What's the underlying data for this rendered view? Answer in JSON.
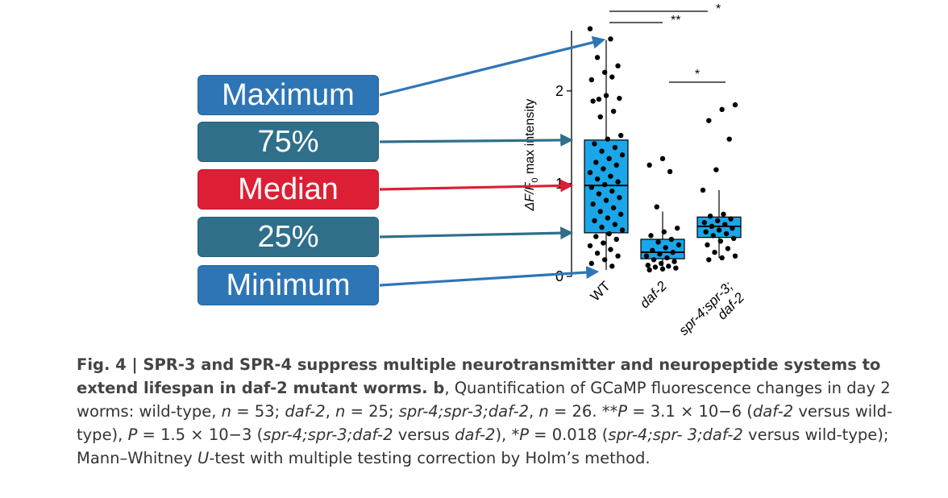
{
  "legend": [
    {
      "key": "max",
      "label": "Maximum",
      "color": "#2e75b6"
    },
    {
      "key": "q3",
      "label": "75%",
      "color": "#2f6f8a"
    },
    {
      "key": "median",
      "label": "Median",
      "color": "#dc1f35"
    },
    {
      "key": "q1",
      "label": "25%",
      "color": "#2f6f8a"
    },
    {
      "key": "min",
      "label": "Minimum",
      "color": "#2e75b6"
    }
  ],
  "chart_data": {
    "type": "box",
    "ylabel_parts": [
      "ΔF/F",
      "0",
      " max intensity"
    ],
    "yticks": [
      0,
      1,
      2
    ],
    "ylim": [
      0,
      2.65
    ],
    "box_color": "#1aa6e8",
    "categories": [
      "WT",
      "daf-2",
      "spr-4;spr-3;\ndaf-2"
    ],
    "category_lines": [
      [
        "WT"
      ],
      [
        "daf-2"
      ],
      [
        "spr-4;spr-3;",
        "daf-2"
      ]
    ],
    "category_italic": [
      false,
      true,
      true
    ],
    "boxes": [
      {
        "min": 0.07,
        "q1": 0.47,
        "median": 0.98,
        "q3": 1.47,
        "max": 2.55
      },
      {
        "min": 0.1,
        "q1": 0.19,
        "median": 0.26,
        "q3": 0.4,
        "max": 0.7
      },
      {
        "min": 0.2,
        "q1": 0.42,
        "median": 0.54,
        "q3": 0.64,
        "max": 0.93
      }
    ],
    "points": [
      [
        2.67,
        2.56,
        2.36,
        2.27,
        2.2,
        2.12,
        2.15,
        1.91,
        1.92,
        1.95,
        1.89,
        1.78,
        1.72,
        1.52,
        1.48,
        1.43,
        1.39,
        1.35,
        1.31,
        1.27,
        1.23,
        1.2,
        1.16,
        1.12,
        1.08,
        1.05,
        1.02,
        0.99,
        0.96,
        0.92,
        0.89,
        0.85,
        0.82,
        0.78,
        0.74,
        0.7,
        0.67,
        0.63,
        0.6,
        0.56,
        0.53,
        0.5,
        0.46,
        0.43,
        0.4,
        0.36,
        0.33,
        0.29,
        0.25,
        0.22,
        0.18,
        0.14,
        0.11
      ],
      [
        1.27,
        1.2,
        1.13,
        0.75,
        0.52,
        0.48,
        0.44,
        0.4,
        0.37,
        0.34,
        0.31,
        0.28,
        0.26,
        0.24,
        0.22,
        0.2,
        0.18,
        0.16,
        0.14,
        0.12,
        0.11,
        0.1,
        0.09,
        0.08,
        0.07
      ],
      [
        1.85,
        1.8,
        1.68,
        1.48,
        1.15,
        0.93,
        0.67,
        0.65,
        0.62,
        0.6,
        0.58,
        0.56,
        0.54,
        0.52,
        0.5,
        0.48,
        0.46,
        0.44,
        0.41,
        0.38,
        0.34,
        0.3,
        0.26,
        0.22,
        0.2,
        0.18
      ]
    ],
    "significance": [
      {
        "from": 0,
        "to": 2,
        "label": "*"
      },
      {
        "from": 0,
        "to": 1,
        "label": "**"
      },
      {
        "from": 1,
        "to": 2,
        "label": "*"
      }
    ]
  },
  "caption": {
    "fig_label": "Fig. 4 | ",
    "title": "SPR-3 and SPR-4 suppress multiple neurotransmitter and neuropeptide systems to extend lifespan in daf-2 mutant worms",
    "b_label": ". b",
    "text_runs": [
      {
        "t": ", Quantification of GCaMP fluorescence changes in day 2 worms: wild-type, ",
        "i": false
      },
      {
        "t": "n",
        "i": true
      },
      {
        "t": " = 53; ",
        "i": false
      },
      {
        "t": "daf-2",
        "i": true
      },
      {
        "t": ", ",
        "i": false
      },
      {
        "t": "n",
        "i": true
      },
      {
        "t": " = 25; ",
        "i": false
      },
      {
        "t": "spr-4;spr-3;daf-2",
        "i": true
      },
      {
        "t": ", ",
        "i": false
      },
      {
        "t": "n",
        "i": true
      },
      {
        "t": " = 26. **",
        "i": false
      },
      {
        "t": "P",
        "i": true
      },
      {
        "t": " = 3.1 × 10−6 (",
        "i": false
      },
      {
        "t": "daf-2",
        "i": true
      },
      {
        "t": " versus wild-type), ",
        "i": false
      },
      {
        "t": "P",
        "i": true
      },
      {
        "t": " = 1.5 × 10−3 (",
        "i": false
      },
      {
        "t": "spr-4;spr-3;daf-2",
        "i": true
      },
      {
        "t": " versus ",
        "i": false
      },
      {
        "t": "daf-2",
        "i": true
      },
      {
        "t": "), *",
        "i": false
      },
      {
        "t": "P",
        "i": true
      },
      {
        "t": " = 0.018 (",
        "i": false
      },
      {
        "t": "spr-4;spr- 3;daf-2",
        "i": true
      },
      {
        "t": " versus wild-type); Mann–Whitney ",
        "i": false
      },
      {
        "t": "U",
        "i": true
      },
      {
        "t": "-test with multiple testing correction by Holm’s method.",
        "i": false
      }
    ]
  }
}
